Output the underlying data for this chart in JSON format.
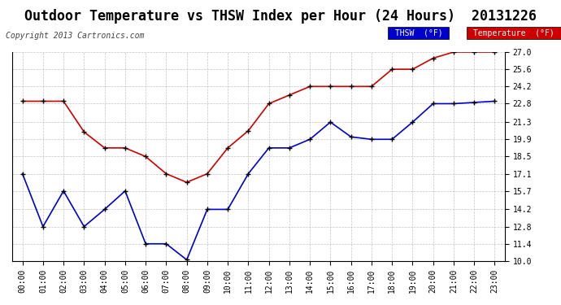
{
  "title": "Outdoor Temperature vs THSW Index per Hour (24 Hours)  20131226",
  "copyright": "Copyright 2013 Cartronics.com",
  "hours": [
    "00:00",
    "01:00",
    "02:00",
    "03:00",
    "04:00",
    "05:00",
    "06:00",
    "07:00",
    "08:00",
    "09:00",
    "10:00",
    "11:00",
    "12:00",
    "13:00",
    "14:00",
    "15:00",
    "16:00",
    "17:00",
    "18:00",
    "19:00",
    "20:00",
    "21:00",
    "22:00",
    "23:00"
  ],
  "temperature": [
    23.0,
    23.0,
    23.0,
    20.5,
    19.2,
    19.2,
    18.5,
    17.1,
    16.4,
    17.1,
    19.2,
    20.6,
    22.8,
    23.5,
    24.2,
    24.2,
    24.2,
    24.2,
    25.6,
    25.6,
    26.5,
    27.0,
    27.0,
    27.0
  ],
  "thsw": [
    17.1,
    12.8,
    15.7,
    12.8,
    14.2,
    15.7,
    11.4,
    11.4,
    10.1,
    14.2,
    14.2,
    17.1,
    19.2,
    19.2,
    19.9,
    21.3,
    20.1,
    19.9,
    19.9,
    21.3,
    22.8,
    22.8,
    22.9,
    23.0
  ],
  "temp_color": "#cc0000",
  "thsw_color": "#0000cc",
  "ylim_min": 10.0,
  "ylim_max": 27.0,
  "ytick_vals": [
    10.0,
    11.4,
    12.8,
    14.2,
    15.7,
    17.1,
    18.5,
    19.9,
    21.3,
    22.8,
    24.2,
    25.6,
    27.0
  ],
  "ytick_labels": [
    "10.0",
    "11.4",
    "12.8",
    "14.2",
    "15.7",
    "17.1",
    "18.5",
    "19.9",
    "21.3",
    "22.8",
    "24.2",
    "25.6",
    "27.0"
  ],
  "bg_color": "#ffffff",
  "grid_color": "#aaaaaa",
  "title_fontsize": 12,
  "axis_fontsize": 7,
  "copyright_fontsize": 7,
  "legend_thsw_label": "THSW  (°F)",
  "legend_temp_label": "Temperature  (°F)",
  "legend_thsw_bg": "#0000cc",
  "legend_temp_bg": "#cc0000"
}
